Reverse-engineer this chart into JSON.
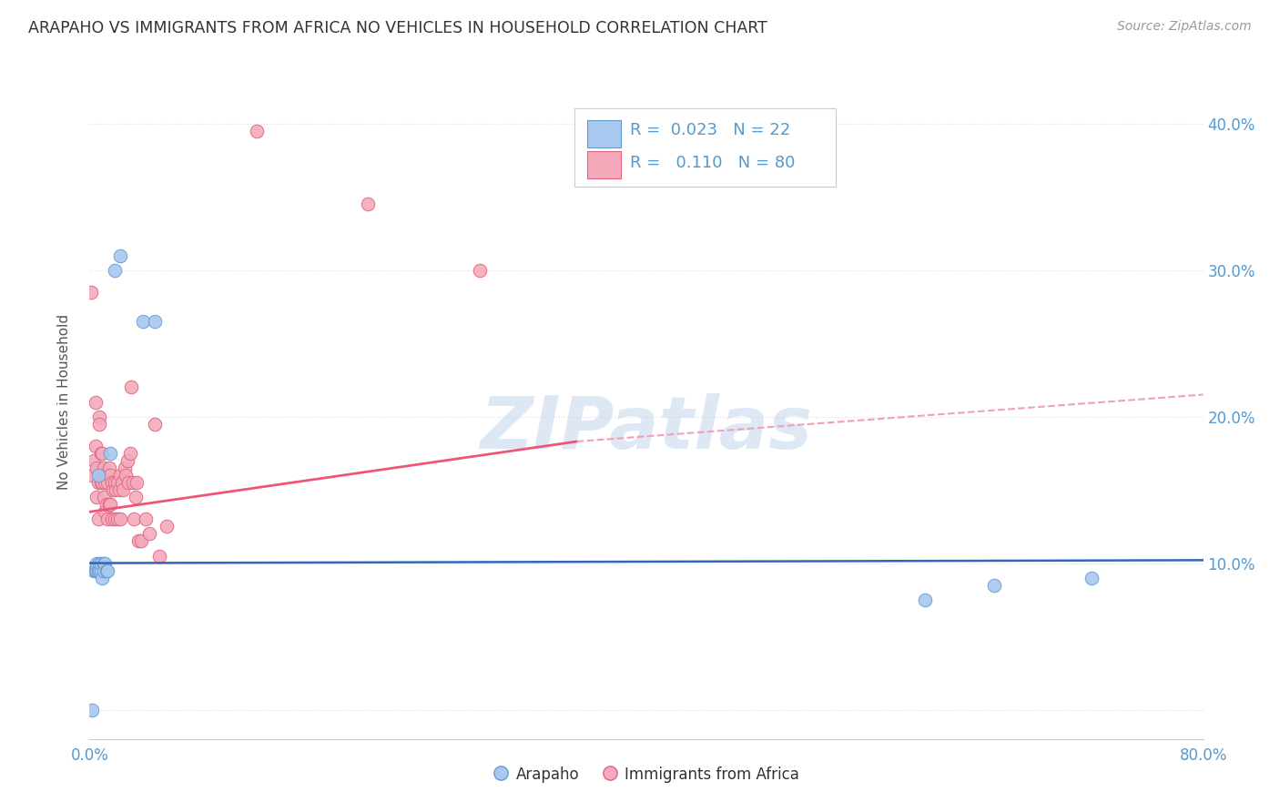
{
  "title": "ARAPAHO VS IMMIGRANTS FROM AFRICA NO VEHICLES IN HOUSEHOLD CORRELATION CHART",
  "source": "Source: ZipAtlas.com",
  "ylabel": "No Vehicles in Household",
  "xlim": [
    0.0,
    0.8
  ],
  "ylim": [
    -0.02,
    0.44
  ],
  "arapaho_color": "#A8C8F0",
  "arapaho_edge_color": "#6699CC",
  "africa_color": "#F4AABB",
  "africa_edge_color": "#E06080",
  "arapaho_line_color": "#3366BB",
  "africa_line_color": "#EE5577",
  "africa_dash_color": "#F0A0B8",
  "watermark_color": "#C8D8EE",
  "grid_color": "#DDDDDD",
  "tick_color": "#5599CC",
  "arapaho_x": [
    0.002,
    0.003,
    0.004,
    0.005,
    0.005,
    0.006,
    0.006,
    0.007,
    0.007,
    0.008,
    0.008,
    0.009,
    0.01,
    0.01,
    0.011,
    0.012,
    0.013,
    0.015,
    0.018,
    0.022,
    0.038,
    0.047,
    0.6,
    0.65,
    0.72
  ],
  "arapaho_y": [
    0.0,
    0.095,
    0.095,
    0.095,
    0.1,
    0.16,
    0.095,
    0.1,
    0.095,
    0.095,
    0.1,
    0.09,
    0.1,
    0.095,
    0.1,
    0.095,
    0.095,
    0.175,
    0.3,
    0.31,
    0.265,
    0.265,
    0.075,
    0.085,
    0.09
  ],
  "africa_x": [
    0.001,
    0.002,
    0.003,
    0.004,
    0.004,
    0.005,
    0.005,
    0.006,
    0.006,
    0.007,
    0.007,
    0.008,
    0.008,
    0.009,
    0.009,
    0.01,
    0.01,
    0.011,
    0.011,
    0.012,
    0.012,
    0.013,
    0.013,
    0.014,
    0.014,
    0.015,
    0.015,
    0.016,
    0.016,
    0.017,
    0.018,
    0.018,
    0.019,
    0.02,
    0.02,
    0.021,
    0.022,
    0.022,
    0.023,
    0.024,
    0.025,
    0.026,
    0.027,
    0.028,
    0.029,
    0.03,
    0.031,
    0.032,
    0.033,
    0.034,
    0.035,
    0.037,
    0.04,
    0.043,
    0.047,
    0.05,
    0.055,
    0.12,
    0.2,
    0.28
  ],
  "africa_y": [
    0.285,
    0.16,
    0.17,
    0.21,
    0.18,
    0.165,
    0.145,
    0.155,
    0.13,
    0.2,
    0.195,
    0.175,
    0.155,
    0.175,
    0.155,
    0.165,
    0.145,
    0.155,
    0.135,
    0.16,
    0.14,
    0.155,
    0.13,
    0.165,
    0.14,
    0.16,
    0.14,
    0.155,
    0.13,
    0.15,
    0.155,
    0.13,
    0.15,
    0.155,
    0.13,
    0.15,
    0.16,
    0.13,
    0.155,
    0.15,
    0.165,
    0.16,
    0.17,
    0.155,
    0.175,
    0.22,
    0.155,
    0.13,
    0.145,
    0.155,
    0.115,
    0.115,
    0.13,
    0.12,
    0.195,
    0.105,
    0.125,
    0.395,
    0.345,
    0.3
  ]
}
